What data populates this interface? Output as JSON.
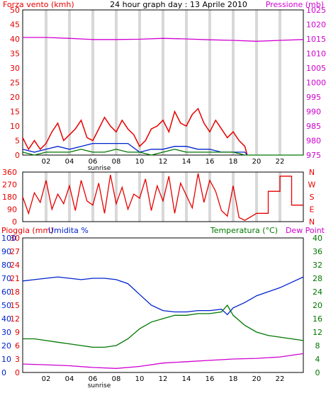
{
  "colors": {
    "red": "#e60000",
    "magenta": "#d000d0",
    "blue": "#0022cc",
    "green": "#007700",
    "grid": "#d8d8d8",
    "frame": "#000000"
  },
  "hour_labels": [
    "02",
    "04",
    "06",
    "08",
    "10",
    "12",
    "14",
    "16",
    "18",
    "20",
    "22"
  ],
  "sunrise_label": "sunrise",
  "chart_data": [
    {
      "type": "line",
      "title": "24 hour graph day : 13 Aprile 2010",
      "left_axis": {
        "label": "Forza vento (kmh)",
        "ticks": [
          "0",
          "5",
          "10",
          "15",
          "20",
          "25",
          "30",
          "35",
          "40",
          "45",
          "50"
        ],
        "range": [
          0,
          50
        ]
      },
      "right_axis": {
        "label": "Pressione (mb)",
        "ticks": [
          "975",
          "980",
          "985",
          "990",
          "995",
          "1000",
          "1005",
          "1010",
          "1015",
          "1020",
          "1025"
        ],
        "range": [
          975,
          1025
        ]
      },
      "grid": true,
      "series": [
        {
          "axis": "right",
          "x": [
            0,
            2,
            4,
            6,
            8,
            10,
            12,
            14,
            16,
            18,
            20,
            22,
            24
          ],
          "values": [
            1015.5,
            1015.5,
            1015.2,
            1014.8,
            1014.8,
            1014.9,
            1015.2,
            1015.0,
            1014.7,
            1014.5,
            1014.2,
            1014.5,
            1014.8
          ]
        },
        {
          "axis": "left",
          "x": [
            0,
            0.5,
            1,
            1.5,
            2,
            2.5,
            3,
            3.5,
            4,
            4.5,
            5,
            5.5,
            6,
            6.5,
            7,
            7.5,
            8,
            8.5,
            9,
            9.5,
            10,
            10.5,
            11,
            11.5,
            12,
            12.5,
            13,
            13.5,
            14,
            14.5,
            15,
            15.5,
            16,
            16.5,
            17,
            17.5,
            18,
            18.5,
            19,
            19.2
          ],
          "values": [
            6,
            2,
            5,
            2,
            4,
            8,
            11,
            5,
            7,
            9,
            12,
            6,
            5,
            9,
            13,
            10,
            8,
            12,
            9,
            7,
            3,
            5,
            9,
            10,
            12,
            8,
            15,
            11,
            10,
            14,
            16,
            11,
            8,
            12,
            9,
            6,
            8,
            5,
            3,
            0
          ]
        },
        {
          "axis": "left",
          "x": [
            0,
            1,
            2,
            3,
            4,
            5,
            6,
            7,
            8,
            9,
            10,
            11,
            12,
            13,
            14,
            15,
            16,
            17,
            18,
            19,
            19.2
          ],
          "values": [
            2,
            1,
            2,
            3,
            2,
            3,
            4,
            4,
            4,
            4,
            1,
            2,
            2,
            3,
            3,
            2,
            2,
            1,
            1,
            1,
            0
          ]
        },
        {
          "axis": "left",
          "x": [
            0,
            1,
            2,
            3,
            4,
            5,
            6,
            7,
            8,
            9,
            10,
            11,
            12,
            13,
            14,
            15,
            16,
            17,
            18,
            19,
            24
          ],
          "values": [
            1,
            0,
            1,
            1,
            1,
            2,
            1,
            1,
            2,
            1,
            1,
            0,
            1,
            2,
            1,
            1,
            1,
            1,
            1,
            0,
            0
          ]
        }
      ]
    },
    {
      "type": "line",
      "left_axis": {
        "ticks": [
          "0",
          "90",
          "180",
          "270",
          "360"
        ],
        "range": [
          0,
          360
        ]
      },
      "right_axis": {
        "ticks": [
          "N",
          "E",
          "S",
          "W",
          "N"
        ]
      },
      "grid": true,
      "series": [
        {
          "x": [
            0,
            0.5,
            1,
            1.5,
            2,
            2.5,
            3,
            3.5,
            4,
            4.5,
            5,
            5.5,
            6,
            6.5,
            7,
            7.5,
            8,
            8.5,
            9,
            9.5,
            10,
            10.5,
            11,
            11.5,
            12,
            12.5,
            13,
            13.5,
            14,
            14.5,
            15,
            15.5,
            16,
            16.5,
            17,
            17.5,
            18,
            18.5,
            19,
            20,
            21,
            21,
            22,
            22,
            23,
            23,
            24
          ],
          "values": [
            180,
            60,
            210,
            140,
            300,
            90,
            200,
            130,
            260,
            80,
            300,
            150,
            120,
            280,
            60,
            340,
            130,
            250,
            90,
            200,
            170,
            310,
            80,
            260,
            150,
            330,
            60,
            280,
            190,
            100,
            350,
            140,
            300,
            220,
            80,
            40,
            260,
            30,
            10,
            60,
            60,
            220,
            220,
            330,
            330,
            120,
            120
          ]
        }
      ]
    },
    {
      "type": "line",
      "left_axis_rain": {
        "label": "Pioggia (mm)",
        "ticks": [
          "0",
          "3",
          "6",
          "9",
          "12",
          "15",
          "18",
          "21",
          "24",
          "27",
          "30"
        ],
        "range": [
          0,
          30
        ]
      },
      "left_axis_humidity": {
        "label": "Umidita %",
        "ticks": [
          "0",
          "10",
          "20",
          "30",
          "40",
          "50",
          "60",
          "70",
          "80",
          "90",
          "100"
        ],
        "range": [
          0,
          100
        ]
      },
      "right_axis": {
        "label": "Temperatura (°C)",
        "ticks": [
          "0",
          "4",
          "8",
          "12",
          "16",
          "20",
          "24",
          "28",
          "32",
          "36",
          "40"
        ],
        "range": [
          0,
          40
        ]
      },
      "right_label_extra": "Dew Point",
      "grid": false,
      "series": [
        {
          "axis": "humidity",
          "x": [
            0,
            1,
            2,
            3,
            4,
            5,
            6,
            7,
            8,
            9,
            10,
            11,
            12,
            13,
            14,
            15,
            16,
            17,
            17.5,
            18,
            19,
            20,
            21,
            22,
            23,
            24
          ],
          "values": [
            68,
            69,
            70,
            71,
            70,
            69,
            70,
            70,
            69,
            66,
            58,
            50,
            46,
            45,
            45,
            46,
            46,
            47,
            43,
            48,
            52,
            57,
            60,
            63,
            67,
            71
          ]
        },
        {
          "axis": "temperature",
          "x": [
            0,
            1,
            2,
            3,
            4,
            5,
            6,
            7,
            8,
            9,
            10,
            11,
            12,
            13,
            14,
            15,
            16,
            17,
            17.5,
            18,
            19,
            20,
            21,
            22,
            23,
            24
          ],
          "values": [
            10,
            10,
            9.5,
            9,
            8.5,
            8,
            7.5,
            7.5,
            8,
            10,
            13,
            15,
            16,
            17,
            17,
            17.5,
            17.5,
            18,
            20,
            17,
            14,
            12,
            11,
            10.5,
            10,
            9.5
          ]
        },
        {
          "axis": "temperature",
          "x": [
            0,
            2,
            4,
            6,
            8,
            10,
            12,
            14,
            16,
            18,
            20,
            22,
            24
          ],
          "values": [
            2.5,
            2.3,
            2.0,
            1.5,
            1.2,
            1.8,
            2.8,
            3.2,
            3.6,
            4.0,
            4.2,
            4.6,
            5.6
          ]
        }
      ]
    }
  ]
}
